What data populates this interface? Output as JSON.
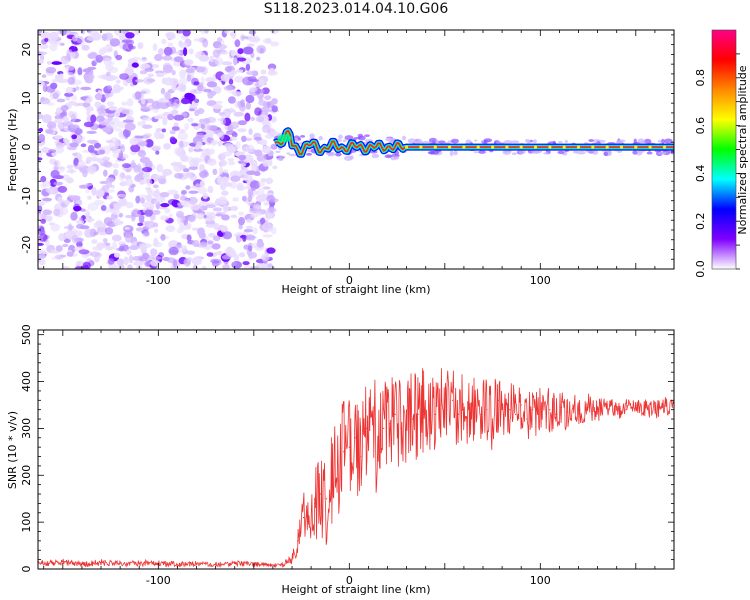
{
  "figure": {
    "title": "S118.2023.014.04.10.G06"
  },
  "chart_data": [
    {
      "type": "heatmap",
      "title": "S118.2023.014.04.10.G06",
      "xlabel": "Height of straight line (km)",
      "ylabel": "Frequency (Hz)",
      "xlim": [
        -163,
        170
      ],
      "ylim": [
        -25,
        24
      ],
      "x_ticks": [
        -100,
        0,
        100
      ],
      "x_tick_labels": [
        "-100",
        "0",
        "100"
      ],
      "y_ticks": [
        -20,
        -10,
        0,
        10,
        20
      ],
      "y_tick_labels": [
        "-20",
        "-10",
        "0",
        "10",
        "20"
      ],
      "noise_region_x": [
        -163,
        -39
      ],
      "signal_region_x": [
        -39,
        170
      ],
      "signal_line_frequency_hz": 0,
      "colorbar": {
        "label": "Normalized spectral amplitude",
        "range": [
          0.0,
          1.0
        ],
        "ticks": [
          0.0,
          0.2,
          0.4,
          0.6,
          0.8
        ],
        "tick_labels": [
          "0.0",
          "0.2",
          "0.4",
          "0.6",
          "0.8"
        ],
        "colormap": [
          "#ffffff",
          "#7f00ff",
          "#0000ff",
          "#00ffff",
          "#00ff00",
          "#ffff00",
          "#ff8800",
          "#ff0000",
          "#ff0088"
        ]
      }
    },
    {
      "type": "line",
      "xlabel": "Height of straight line (km)",
      "ylabel": "SNR (10 * v/v)",
      "xlim": [
        -163,
        170
      ],
      "ylim": [
        0,
        510
      ],
      "x_ticks": [
        -100,
        0,
        100
      ],
      "x_tick_labels": [
        "-100",
        "0",
        "100"
      ],
      "y_ticks": [
        0,
        100,
        200,
        300,
        400,
        500
      ],
      "y_tick_labels": [
        "0",
        "100",
        "200",
        "300",
        "400",
        "500"
      ],
      "color": "#ee3333",
      "x": [
        -163,
        -150,
        -140,
        -130,
        -120,
        -110,
        -100,
        -90,
        -80,
        -70,
        -60,
        -50,
        -40,
        -35,
        -30,
        -27,
        -24,
        -21,
        -18,
        -15,
        -12,
        -9,
        -6,
        -3,
        0,
        3,
        6,
        9,
        12,
        15,
        18,
        21,
        24,
        27,
        30,
        33,
        36,
        39,
        42,
        45,
        48,
        51,
        54,
        57,
        60,
        63,
        66,
        69,
        72,
        75,
        78,
        81,
        84,
        87,
        90,
        93,
        96,
        99,
        102,
        105,
        108,
        111,
        114,
        117,
        120,
        125,
        130,
        135,
        140,
        145,
        150,
        155,
        160,
        165,
        170
      ],
      "y": [
        12,
        15,
        10,
        14,
        11,
        13,
        12,
        10,
        11,
        9,
        12,
        10,
        9,
        10,
        20,
        60,
        110,
        90,
        140,
        160,
        150,
        200,
        190,
        250,
        260,
        280,
        240,
        300,
        330,
        260,
        300,
        310,
        330,
        300,
        310,
        320,
        330,
        340,
        320,
        330,
        350,
        340,
        360,
        330,
        340,
        320,
        350,
        330,
        340,
        320,
        360,
        330,
        340,
        330,
        350,
        320,
        340,
        330,
        350,
        340,
        330,
        345,
        335,
        350,
        340,
        345,
        340,
        350,
        345,
        340,
        350,
        345,
        340,
        348,
        345
      ],
      "y_spread": [
        6,
        8,
        6,
        7,
        6,
        7,
        6,
        6,
        6,
        5,
        6,
        5,
        5,
        6,
        10,
        40,
        60,
        60,
        80,
        90,
        100,
        110,
        110,
        120,
        110,
        110,
        110,
        120,
        130,
        120,
        110,
        110,
        100,
        100,
        100,
        100,
        100,
        90,
        90,
        90,
        90,
        90,
        80,
        80,
        80,
        80,
        70,
        70,
        70,
        70,
        70,
        60,
        60,
        60,
        60,
        60,
        55,
        55,
        50,
        50,
        45,
        40,
        40,
        35,
        35,
        30,
        30,
        25,
        25,
        25,
        20,
        20,
        20,
        20,
        20
      ]
    }
  ]
}
